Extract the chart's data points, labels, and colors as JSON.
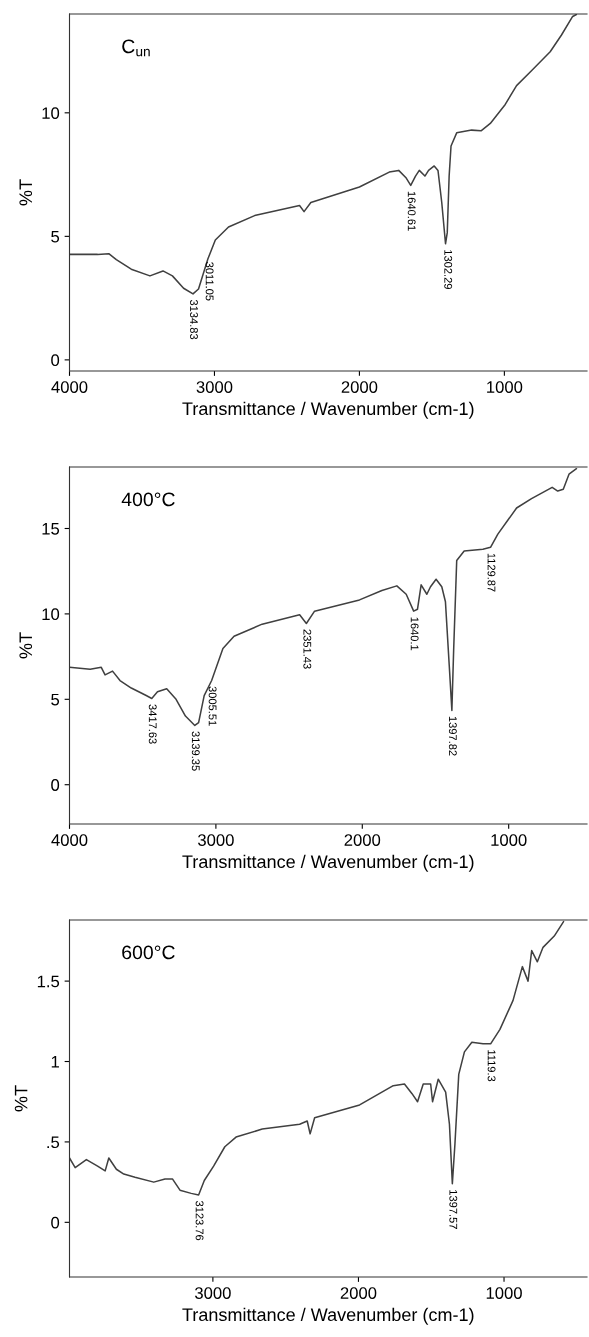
{
  "chart_data": [
    {
      "type": "line",
      "xlabel": "Transmittance / Wavenumber (cm-1)",
      "ylabel": "%T",
      "xlim": [
        4000,
        430
      ],
      "ylim": [
        -0.45,
        14
      ],
      "xticks": [
        4000,
        3000,
        2000,
        1000
      ],
      "yticks": [
        0,
        5,
        10
      ],
      "x": [
        4000,
        3806,
        3729,
        3677,
        3574,
        3445,
        3355,
        3290,
        3213,
        3148,
        3110,
        3045,
        2994,
        2903,
        2723,
        2413,
        2382,
        2335,
        2000,
        1794,
        1729,
        1677,
        1646,
        1613,
        1587,
        1548,
        1523,
        1484,
        1458,
        1432,
        1406,
        1394,
        1381,
        1368,
        1329,
        1226,
        1161,
        1097,
        994,
        916,
        813,
        684,
        606,
        529,
        503
      ],
      "series": [
        {
          "color": "#404040",
          "values": [
            4.27,
            4.27,
            4.3,
            4.06,
            3.67,
            3.4,
            3.6,
            3.4,
            2.9,
            2.67,
            2.87,
            4.09,
            4.85,
            5.38,
            5.84,
            6.25,
            6.0,
            6.37,
            7.0,
            7.6,
            7.67,
            7.36,
            7.06,
            7.44,
            7.67,
            7.44,
            7.67,
            7.85,
            7.67,
            6.37,
            4.7,
            5.15,
            7.44,
            8.66,
            9.19,
            9.3,
            9.27,
            9.57,
            10.34,
            11.1,
            11.7,
            12.47,
            13.15,
            13.9,
            13.98
          ]
        }
      ],
      "annotations": [
        "C$_{un}$",
        {
          "text": "3134.83",
          "x": 3148,
          "y": 2.67
        },
        {
          "text": "3011.05",
          "x": 3040,
          "y": 4.2
        },
        {
          "text": "1640.61",
          "x": 1646,
          "y": 7.06
        },
        {
          "text": "1302.29",
          "x": 1394,
          "y": 4.7
        }
      ]
    },
    {
      "type": "line",
      "xlabel": "Transmittance / Wavenumber (cm-1)",
      "ylabel": "%T",
      "xlim": [
        4000,
        465
      ],
      "ylim": [
        -2.3,
        18.6
      ],
      "xticks": [
        4000,
        3000,
        2000,
        1000
      ],
      "yticks": [
        0,
        5,
        10,
        15
      ],
      "x": [
        4000,
        3859,
        3783,
        3757,
        3706,
        3655,
        3578,
        3476,
        3438,
        3399,
        3336,
        3272,
        3208,
        3144,
        3118,
        3080,
        3029,
        2952,
        2876,
        2684,
        2428,
        2382,
        2326,
        2019,
        1866,
        1764,
        1700,
        1649,
        1623,
        1598,
        1559,
        1534,
        1496,
        1457,
        1432,
        1406,
        1388,
        1376,
        1355,
        1304,
        1176,
        1124,
        1074,
        946,
        844,
        703,
        665,
        627,
        588,
        537
      ],
      "series": [
        {
          "color": "#404040",
          "values": [
            6.87,
            6.76,
            6.87,
            6.43,
            6.65,
            6.1,
            5.66,
            5.22,
            5.05,
            5.44,
            5.62,
            5.0,
            4.02,
            3.47,
            3.64,
            5.22,
            6.1,
            7.97,
            8.69,
            9.4,
            9.95,
            9.44,
            10.16,
            10.82,
            11.37,
            11.64,
            11.15,
            10.16,
            10.27,
            11.7,
            11.15,
            11.59,
            12.03,
            11.59,
            10.71,
            6.98,
            4.35,
            7.86,
            13.13,
            13.68,
            13.79,
            13.9,
            14.67,
            16.2,
            16.75,
            17.41,
            17.19,
            17.3,
            18.18,
            18.5
          ]
        }
      ],
      "annotations": [
        "400°C",
        {
          "text": "3417.63",
          "x": 3438,
          "y": 5.05
        },
        {
          "text": "3139.35",
          "x": 3144,
          "y": 3.47
        },
        {
          "text": "3005.51",
          "x": 3029,
          "y": 6.1
        },
        {
          "text": "2351.43",
          "x": 2382,
          "y": 9.44
        },
        {
          "text": "1640.1",
          "x": 1649,
          "y": 10.16
        },
        {
          "text": "1397.82",
          "x": 1388,
          "y": 4.35
        },
        {
          "text": "1129.87",
          "x": 1124,
          "y": 13.9
        }
      ]
    },
    {
      "type": "line",
      "xlabel": "Transmittance / Wavenumber (cm-1)",
      "ylabel": "%T",
      "xlim": [
        3985,
        430
      ],
      "ylim": [
        -0.34,
        1.88
      ],
      "xticks": [
        3000,
        2000,
        1000
      ],
      "yticks": [
        0,
        {
          "value": 0.5,
          "label": ".5"
        },
        1,
        1.5
      ],
      "x": [
        3985,
        3946,
        3869,
        3792,
        3740,
        3715,
        3663,
        3612,
        3535,
        3406,
        3329,
        3278,
        3226,
        3149,
        3098,
        3059,
        2995,
        2918,
        2841,
        2661,
        2404,
        2352,
        2332,
        2301,
        1992,
        1761,
        1684,
        1632,
        1594,
        1555,
        1504,
        1491,
        1452,
        1401,
        1375,
        1355,
        1337,
        1311,
        1272,
        1221,
        1144,
        1092,
        1028,
        938,
        874,
        835,
        810,
        771,
        732,
        655,
        591
      ],
      "series": [
        {
          "color": "#404040",
          "values": [
            0.4,
            0.34,
            0.39,
            0.35,
            0.32,
            0.4,
            0.33,
            0.3,
            0.28,
            0.25,
            0.27,
            0.27,
            0.2,
            0.18,
            0.17,
            0.26,
            0.35,
            0.47,
            0.53,
            0.58,
            0.61,
            0.63,
            0.55,
            0.65,
            0.73,
            0.85,
            0.86,
            0.8,
            0.75,
            0.86,
            0.86,
            0.75,
            0.89,
            0.81,
            0.61,
            0.24,
            0.49,
            0.92,
            1.06,
            1.12,
            1.11,
            1.11,
            1.2,
            1.38,
            1.59,
            1.5,
            1.69,
            1.62,
            1.71,
            1.78,
            1.87
          ]
        }
      ],
      "annotations": [
        "600°C",
        {
          "text": "3123.76",
          "x": 3098,
          "y": 0.17
        },
        {
          "text": "1397.57",
          "x": 1355,
          "y": 0.24
        },
        {
          "text": "1119.3",
          "x": 1092,
          "y": 1.11
        }
      ]
    }
  ]
}
